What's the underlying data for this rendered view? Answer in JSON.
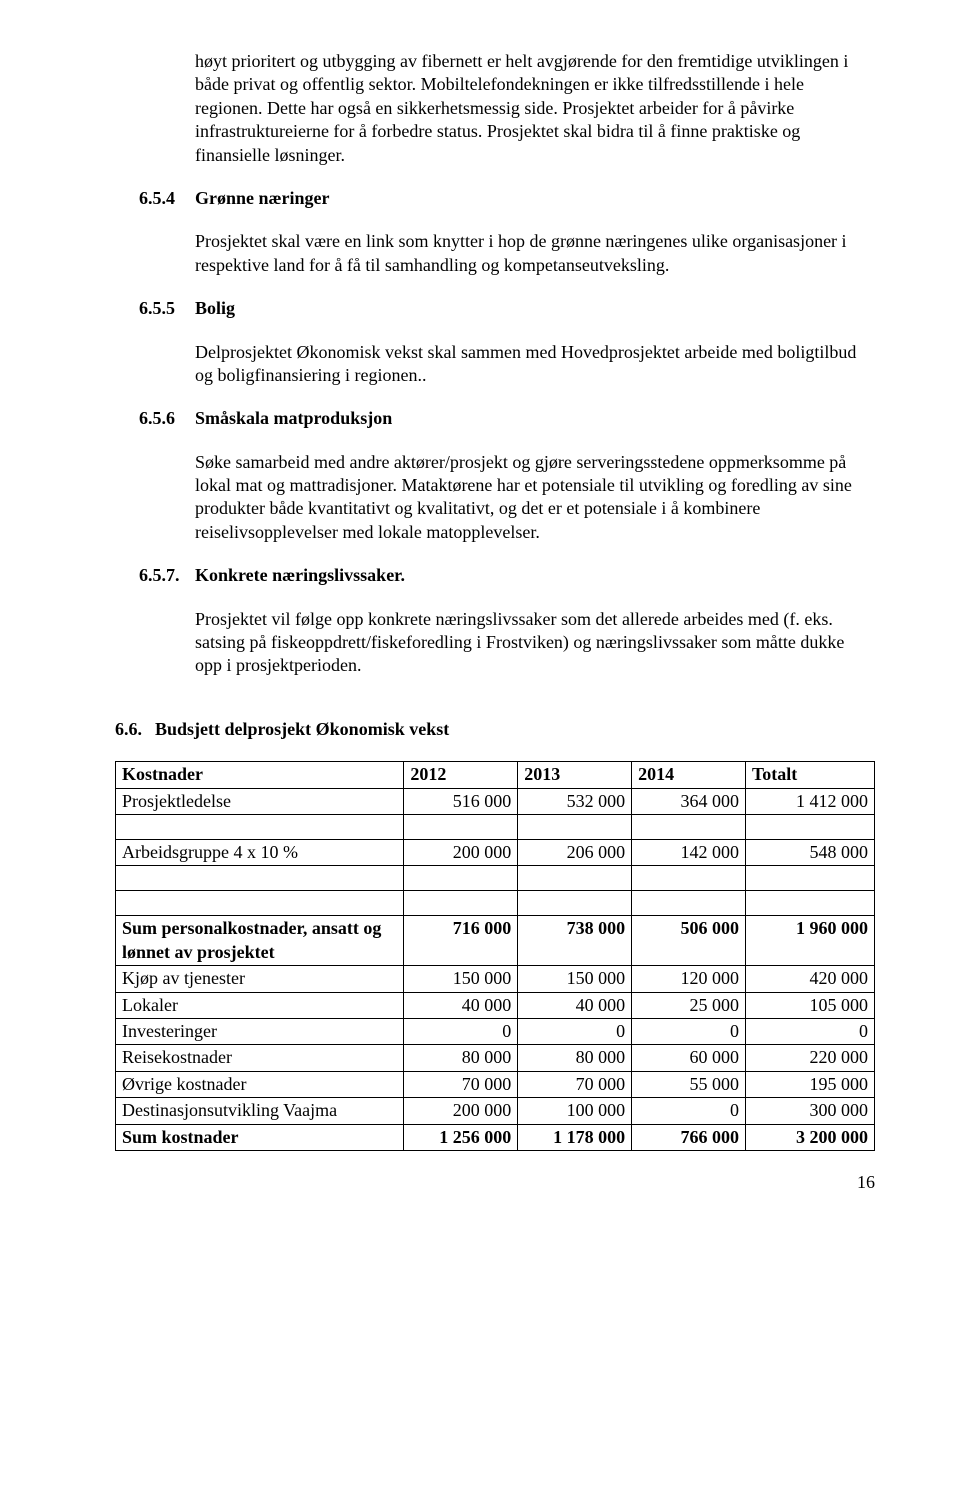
{
  "intro_paragraph": "høyt prioritert og utbygging av fibernett er helt avgjørende for den fremtidige utviklingen i både privat og offentlig sektor. Mobiltelefondekningen er ikke tilfredsstillende i hele regionen. Dette har også en sikkerhetsmessig side. Prosjektet arbeider for å påvirke infrastruktureierne for å forbedre status. Prosjektet skal bidra til å finne praktiske og finansielle løsninger.",
  "sections": [
    {
      "num": "6.5.4",
      "title": "Grønne næringer",
      "body": "Prosjektet skal være en link som knytter i hop de grønne næringenes ulike organisasjoner i respektive land for å få til samhandling og kompetanseutveksling."
    },
    {
      "num": "6.5.5",
      "title": "Bolig",
      "body": "Delprosjektet Økonomisk vekst skal sammen med Hovedprosjektet arbeide med boligtilbud og boligfinansiering i regionen.."
    },
    {
      "num": "6.5.6",
      "title": "Småskala matproduksjon",
      "body": " Søke samarbeid med andre aktører/prosjekt og gjøre serveringsstedene oppmerksomme på lokal mat og mattradisjoner. Mataktørene har et potensiale til utvikling og foredling av sine produkter både kvantitativt og kvalitativt, og det er et potensiale i å kombinere reiselivsopplevelser med lokale matopplevelser."
    },
    {
      "num": "6.5.7.",
      "title": "Konkrete næringslivssaker.",
      "body": "Prosjektet vil følge opp konkrete næringslivssaker som det allerede arbeides med (f. eks. satsing på fiskeoppdrett/fiskeforedling i Frostviken) og næringslivssaker som måtte dukke opp i prosjektperioden."
    }
  ],
  "budget_heading": {
    "num": "6.6.",
    "title": "Budsjett delprosjekt Økonomisk vekst"
  },
  "table": {
    "columns": [
      "Kostnader",
      "2012",
      "2013",
      "2014",
      "Totalt"
    ],
    "col_widths": [
      "38%",
      "15%",
      "15%",
      "15%",
      "17%"
    ],
    "rows": [
      {
        "label": "Prosjektledelse",
        "vals": [
          "516 000",
          "532 000",
          "364 000",
          "1 412 000"
        ],
        "bold": false
      },
      {
        "empty": true
      },
      {
        "label": "Arbeidsgruppe 4 x 10 %",
        "vals": [
          "200 000",
          "206 000",
          "142 000",
          "548 000"
        ],
        "bold": false
      },
      {
        "empty": true
      },
      {
        "empty": true
      },
      {
        "label": "Sum personalkostnader, ansatt og lønnet av prosjektet",
        "vals": [
          "716 000",
          "738 000",
          "506 000",
          "1 960 000"
        ],
        "bold": true
      },
      {
        "label": "Kjøp av tjenester",
        "vals": [
          "150 000",
          "150 000",
          "120 000",
          "420 000"
        ],
        "bold": false
      },
      {
        "label": "Lokaler",
        "vals": [
          "40 000",
          "40 000",
          "25 000",
          "105 000"
        ],
        "bold": false
      },
      {
        "label": "Investeringer",
        "vals": [
          "0",
          "0",
          "0",
          "0"
        ],
        "bold": false
      },
      {
        "label": "Reisekostnader",
        "vals": [
          "80 000",
          "80 000",
          "60 000",
          "220 000"
        ],
        "bold": false
      },
      {
        "label": "Øvrige kostnader",
        "vals": [
          "70 000",
          "70 000",
          "55 000",
          "195 000"
        ],
        "bold": false
      },
      {
        "label": "Destinasjonsutvikling Vaajma",
        "vals": [
          "200 000",
          "100 000",
          "0",
          "300 000"
        ],
        "bold": false
      },
      {
        "label": "Sum kostnader",
        "vals": [
          "1 256 000",
          "1 178 000",
          "766 000",
          "3 200 000"
        ],
        "bold": true
      }
    ]
  },
  "page_number": "16"
}
